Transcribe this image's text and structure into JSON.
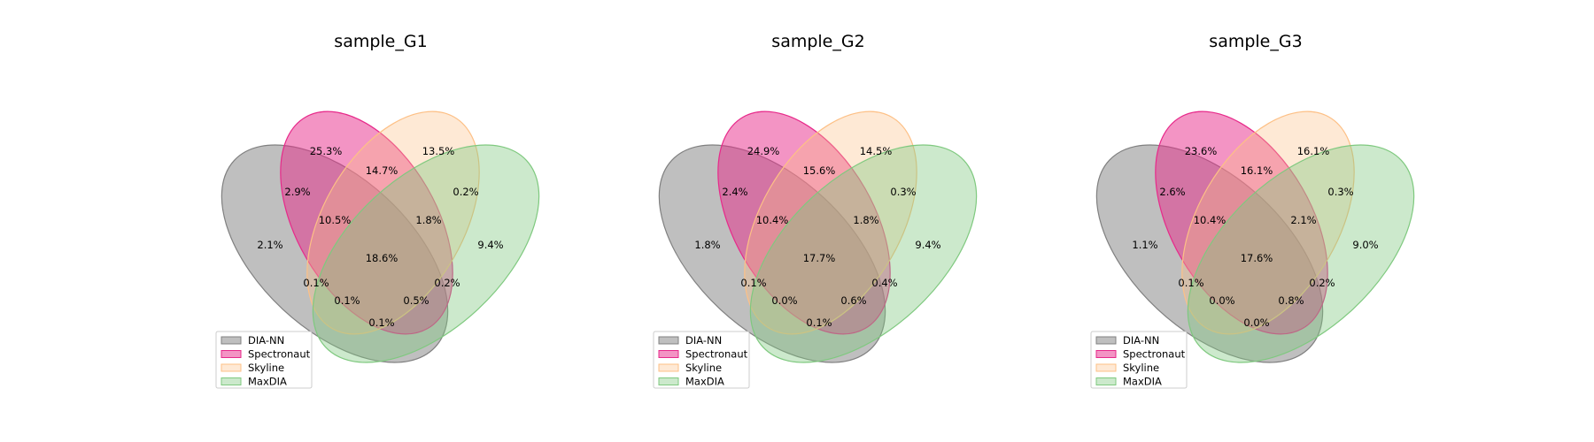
{
  "chart_data": [
    {
      "type": "venn",
      "title": "sample_G1",
      "sets": [
        {
          "name": "DIA-NN",
          "color": "#808080"
        },
        {
          "name": "Spectronaut",
          "color": "#e7298a"
        },
        {
          "name": "Skyline",
          "color": "#fdc086"
        },
        {
          "name": "MaxDIA",
          "color": "#7fc97f"
        }
      ],
      "regions": {
        "A": "2.1%",
        "B": "25.3%",
        "C": "13.5%",
        "D": "9.4%",
        "AB": "2.9%",
        "BC": "14.7%",
        "CD": "0.2%",
        "ABC": "10.5%",
        "BCD": "1.8%",
        "ABCD": "18.6%",
        "AC": "0.1%",
        "BD": "0.2%",
        "ACD": "0.1%",
        "ABD": "0.5%",
        "AD": "0.1%"
      },
      "legend_position": "lower-left"
    },
    {
      "type": "venn",
      "title": "sample_G2",
      "sets": [
        {
          "name": "DIA-NN",
          "color": "#808080"
        },
        {
          "name": "Spectronaut",
          "color": "#e7298a"
        },
        {
          "name": "Skyline",
          "color": "#fdc086"
        },
        {
          "name": "MaxDIA",
          "color": "#7fc97f"
        }
      ],
      "regions": {
        "A": "1.8%",
        "B": "24.9%",
        "C": "14.5%",
        "D": "9.4%",
        "AB": "2.4%",
        "BC": "15.6%",
        "CD": "0.3%",
        "ABC": "10.4%",
        "BCD": "1.8%",
        "ABCD": "17.7%",
        "AC": "0.1%",
        "BD": "0.4%",
        "ACD": "0.0%",
        "ABD": "0.6%",
        "AD": "0.1%"
      },
      "legend_position": "lower-left"
    },
    {
      "type": "venn",
      "title": "sample_G3",
      "sets": [
        {
          "name": "DIA-NN",
          "color": "#808080"
        },
        {
          "name": "Spectronaut",
          "color": "#e7298a"
        },
        {
          "name": "Skyline",
          "color": "#fdc086"
        },
        {
          "name": "MaxDIA",
          "color": "#7fc97f"
        }
      ],
      "regions": {
        "A": "1.1%",
        "B": "23.6%",
        "C": "16.1%",
        "D": "9.0%",
        "AB": "2.6%",
        "BC": "16.1%",
        "CD": "0.3%",
        "ABC": "10.4%",
        "BCD": "2.1%",
        "ABCD": "17.6%",
        "AC": "0.1%",
        "BD": "0.2%",
        "ACD": "0.0%",
        "ABD": "0.8%",
        "AD": "0.0%"
      },
      "legend_position": "lower-left"
    }
  ]
}
